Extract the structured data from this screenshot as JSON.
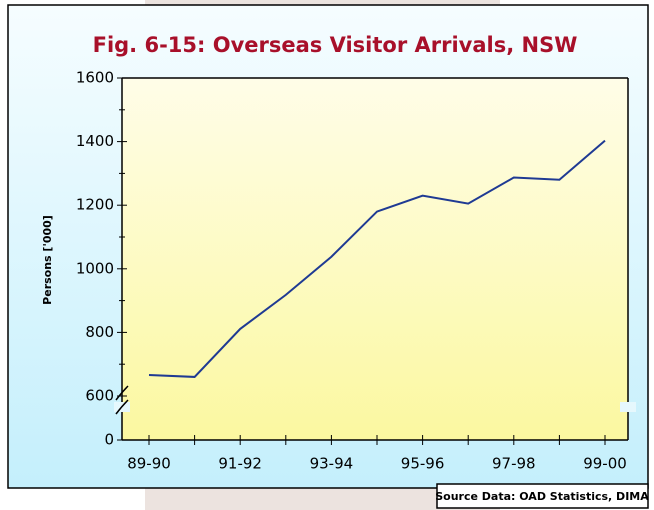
{
  "chart_data": {
    "type": "line",
    "title": "Fig. 6-15: Overseas Visitor Arrivals, NSW",
    "y_label": "Persons ['000]",
    "source": "Source Data: OAD Statistics, DIMA",
    "categories": [
      "89-90",
      null,
      "91-92",
      null,
      "93-94",
      null,
      "95-96",
      null,
      "97-98",
      null,
      "99-00"
    ],
    "values": [
      666,
      660,
      811,
      918,
      1038,
      1180,
      1230,
      1205,
      1287,
      1280,
      1403
    ],
    "color": "#1f3a93",
    "ylim": [
      0,
      1600
    ],
    "yticks": [
      0,
      600,
      800,
      1000,
      1200,
      1400,
      1600
    ],
    "y_axis_break": true
  }
}
